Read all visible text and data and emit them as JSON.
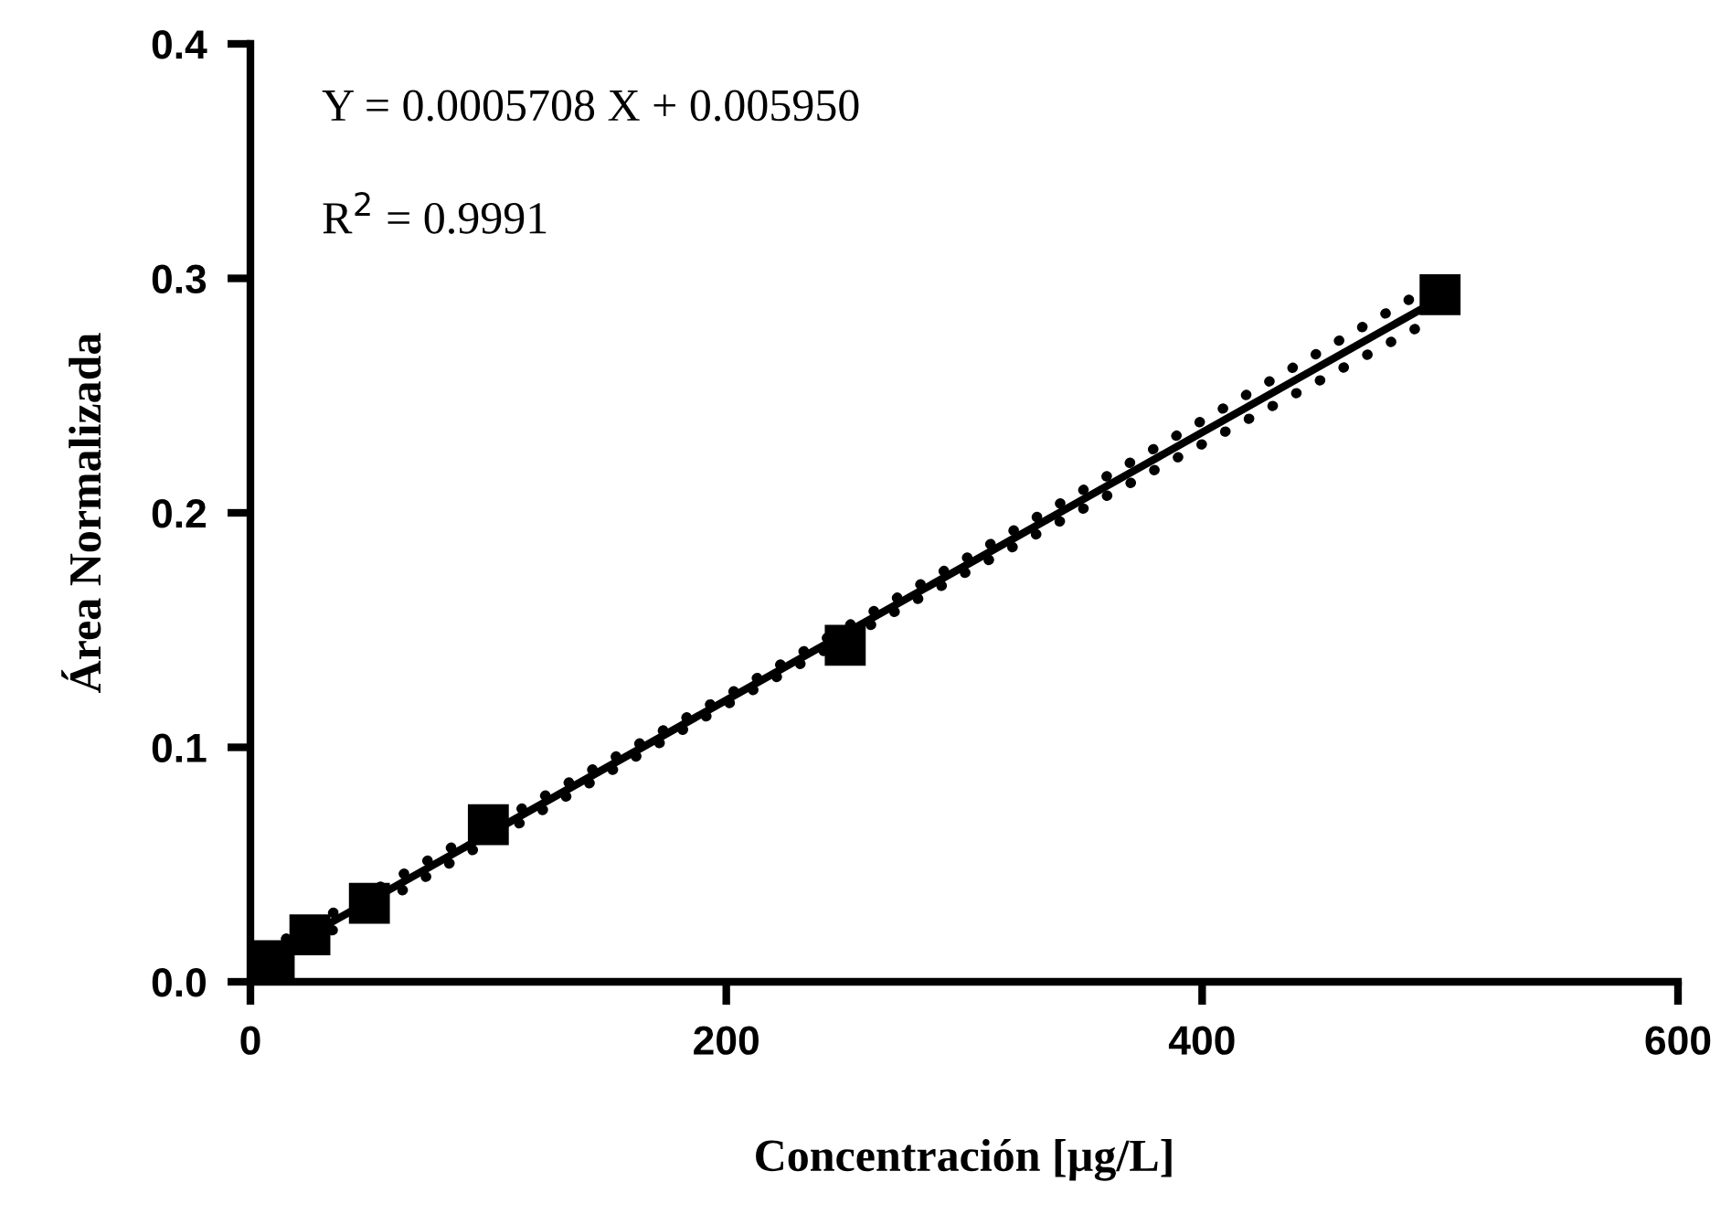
{
  "chart_data": {
    "type": "scatter",
    "xlabel": "Concentración [µg/L]",
    "ylabel": "Área Normalizada",
    "annotations": [
      "Y = 0.0005708 X + 0.005950",
      "R$^{2}$ = 0.9991"
    ],
    "xlim": [
      0,
      600
    ],
    "ylim": [
      0,
      0.4
    ],
    "xticks": [
      0,
      200,
      400,
      600
    ],
    "yticks": [
      {
        "value": 0,
        "label": "0.0"
      },
      {
        "value": 0.1,
        "label": "0.1"
      },
      {
        "value": 0.2,
        "label": "0.2"
      },
      {
        "value": 0.3,
        "label": "0.3"
      },
      {
        "value": 0.4,
        "label": "0.4"
      }
    ],
    "grid": false,
    "legend": false,
    "series": [
      {
        "type": "line",
        "color": "#000000",
        "line_style": "dotted",
        "marker": "none",
        "x": [
          5,
          100,
          200,
          300,
          400,
          490
        ],
        "values": [
          0.0128,
          0.066,
          0.1221,
          0.1802,
          0.2393,
          0.2927
        ]
      },
      {
        "type": "line",
        "color": "#000000",
        "line_style": "dotted",
        "marker": "none",
        "x": [
          5,
          100,
          200,
          300,
          400,
          490
        ],
        "values": [
          0.0048,
          0.06,
          0.1181,
          0.1742,
          0.2293,
          0.2787
        ]
      },
      {
        "type": "line",
        "color": "#000000",
        "line_style": "solid",
        "marker": "none",
        "x": [
          5,
          500
        ],
        "values": [
          0.0088,
          0.2914
        ]
      },
      {
        "color": "#000000",
        "marker": "square",
        "x": [
          10,
          25,
          50,
          100,
          250,
          500
        ],
        "values": [
          0.009,
          0.02,
          0.0335,
          0.067,
          0.1435,
          0.293
        ]
      }
    ]
  }
}
